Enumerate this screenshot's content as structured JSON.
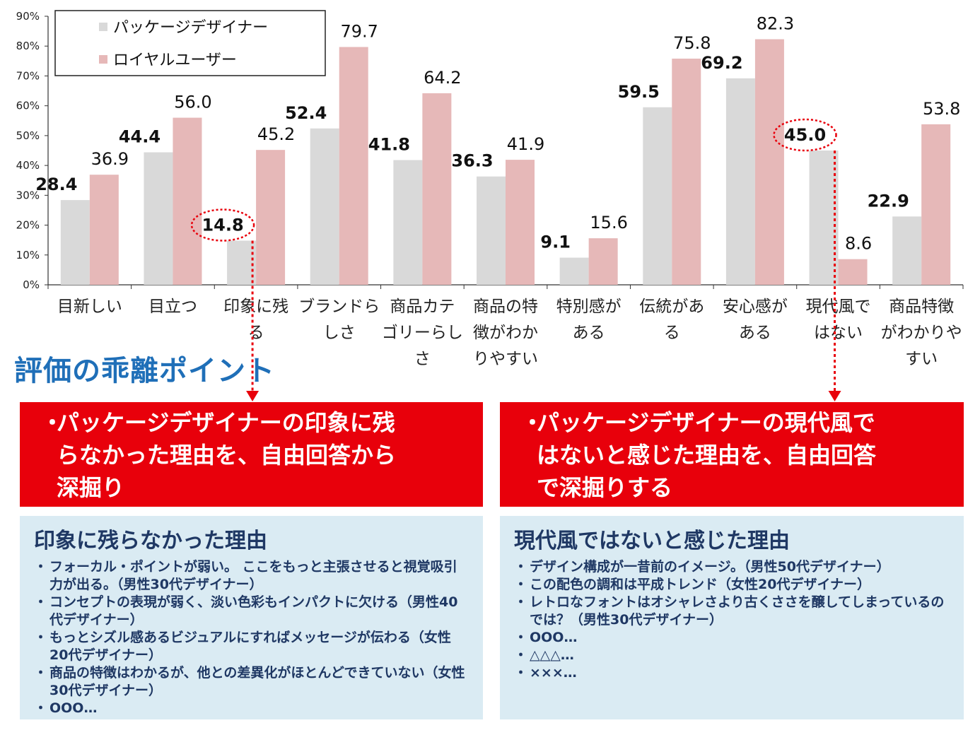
{
  "chart_data": {
    "type": "bar",
    "categories": [
      "目新しい",
      "目立つ",
      "印象に残る",
      "ブランドらしさ",
      "商品カテゴリーらしさ",
      "商品の特徴がわかりやすい",
      "特別感がある",
      "伝統がある",
      "安心感がある",
      "現代風ではない",
      "商品特徴がわかりやすい"
    ],
    "category_lines": [
      [
        "目新しい"
      ],
      [
        "目立つ"
      ],
      [
        "印象に残",
        "る"
      ],
      [
        "ブランドら",
        "しさ"
      ],
      [
        "商品カテ",
        "ゴリーらし",
        "さ"
      ],
      [
        "商品の特",
        "徴がわか",
        "りやすい"
      ],
      [
        "特別感が",
        "ある"
      ],
      [
        "伝統があ",
        "る"
      ],
      [
        "安心感が",
        "ある"
      ],
      [
        "現代風で",
        "はない"
      ],
      [
        "商品特徴",
        "がわかりや",
        "すい"
      ]
    ],
    "series": [
      {
        "name": "パッケージデザイナー",
        "color": "#d9d9d9",
        "values": [
          28.4,
          44.4,
          14.8,
          52.4,
          41.8,
          36.3,
          9.1,
          59.5,
          69.2,
          45.0,
          22.9
        ],
        "value_labels": [
          "28.4",
          "44.4",
          "14.8",
          "52.4",
          "41.8",
          "36.3",
          "9.1",
          "59.5",
          "69.2",
          "45.0",
          "22.9"
        ]
      },
      {
        "name": "ロイヤルユーザー",
        "color": "#e6b8b8",
        "values": [
          36.9,
          56.0,
          45.2,
          79.7,
          64.2,
          41.9,
          15.6,
          75.8,
          82.3,
          8.6,
          53.8
        ],
        "value_labels": [
          "36.9",
          "56.0",
          "45.2",
          "79.7",
          "64.2",
          "41.9",
          "15.6",
          "75.8",
          "82.3",
          "8.6",
          "53.8"
        ]
      }
    ],
    "ylim": [
      0,
      90
    ],
    "yticks": [
      "0%",
      "10%",
      "20%",
      "30%",
      "40%",
      "50%",
      "60%",
      "70%",
      "80%",
      "90%"
    ],
    "legend_position": "top-left",
    "highlighted_categories": [
      "印象に残る",
      "現代風ではない"
    ],
    "highlight_color": "#e8000b"
  },
  "section_title": "評価の乖離ポイント",
  "action_boxes": {
    "left": {
      "bullet": "・",
      "lines": [
        "パッケージデザイナーの印象に残",
        "らなかった理由を、自由回答から",
        "深掘り"
      ]
    },
    "right": {
      "bullet": "・",
      "lines": [
        "パッケージデザイナーの現代風で",
        "はないと感じた理由を、自由回答",
        "で深掘りする"
      ]
    }
  },
  "info_boxes": {
    "left": {
      "title": "印象に残らなかった理由",
      "items": [
        "フォーカル・ポイントが弱い。 ここをもっと主張させると視覚吸引力が出る。（男性30代デザイナー）",
        "コンセプトの表現が弱く、淡い色彩もインパクトに欠ける（男性40代デザイナー）",
        "もっとシズル感あるビジュアルにすればメッセージが伝わる（女性20代デザイナー）",
        "商品の特徴はわかるが、他との差異化がほとんどできていない（女性30代デザイナー）",
        "OOO…"
      ]
    },
    "right": {
      "title": "現代風ではないと感じた理由",
      "items": [
        "デザイン構成が一昔前のイメージ。（男性50代デザイナー）",
        "この配色の調和は平成トレンド（女性20代デザイナー）",
        "レトロなフォントはオシャレさより古くささを醸してしまっているのでは？（男性30代デザイナー）",
        "OOO…",
        "△△△…",
        "×××…"
      ]
    }
  }
}
